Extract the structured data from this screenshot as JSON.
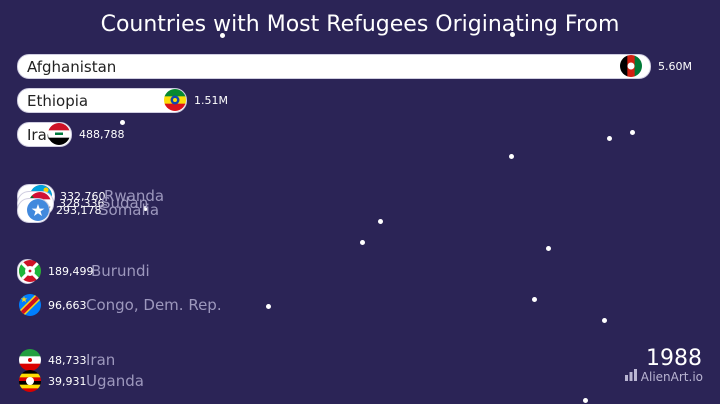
{
  "chart_data": {
    "type": "bar",
    "title": "Countries with Most Refugees Originating From",
    "year": "1988",
    "categories": [
      "Afghanistan",
      "Ethiopia",
      "Iraq",
      "Rwanda",
      "Sudan",
      "Somalia",
      "Burundi",
      "Congo, Dem. Rep.",
      "Iran",
      "Uganda"
    ],
    "values": [
      5600000,
      1510000,
      488788,
      332760,
      328336,
      293178,
      189499,
      96663,
      48733,
      39931
    ],
    "value_labels": [
      "5.60M",
      "1.51M",
      "488,788",
      "332,760",
      "328,336",
      "293,178",
      "189,499",
      "96,663",
      "48,733",
      "39,931"
    ],
    "flags": [
      "af-flag",
      "et-flag",
      "iq-flag",
      "rw-flag",
      "sd-flag",
      "so-flag",
      "bi-flag",
      "cd-flag",
      "ir-flag",
      "ug-flag"
    ]
  },
  "watermark": "AlienArt.io",
  "colors": {
    "background": "#2b2456",
    "bar": "#ffffff",
    "faded_label": "#9d98bd"
  }
}
